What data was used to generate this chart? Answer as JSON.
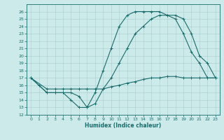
{
  "title": "",
  "xlabel": "Humidex (Indice chaleur)",
  "bg_color": "#cceaea",
  "line_color": "#1a6b6b",
  "grid_color": "#a8cccc",
  "xlim": [
    -0.5,
    23.5
  ],
  "ylim": [
    12,
    27
  ],
  "xticks": [
    0,
    1,
    2,
    3,
    4,
    5,
    6,
    7,
    8,
    9,
    10,
    11,
    12,
    13,
    14,
    15,
    16,
    17,
    18,
    19,
    20,
    21,
    22,
    23
  ],
  "yticks": [
    12,
    13,
    14,
    15,
    16,
    17,
    18,
    19,
    20,
    21,
    22,
    23,
    24,
    25,
    26
  ],
  "line1_x": [
    0,
    1,
    2,
    3,
    4,
    5,
    6,
    7,
    8,
    9,
    10,
    11,
    12,
    13,
    14,
    15,
    16,
    17,
    18,
    19,
    20,
    21,
    22,
    23
  ],
  "line1_y": [
    17,
    16,
    15,
    15,
    15,
    14,
    13,
    13,
    15,
    18,
    21,
    24,
    25.5,
    26,
    26,
    26,
    26,
    25.5,
    25,
    23,
    20.5,
    19,
    17,
    17
  ],
  "line2_x": [
    0,
    2,
    3,
    4,
    5,
    6,
    7,
    8,
    9,
    10,
    11,
    12,
    13,
    14,
    15,
    16,
    17,
    18,
    19,
    20,
    21,
    22,
    23
  ],
  "line2_y": [
    17,
    15,
    15,
    15,
    15,
    14.5,
    13,
    13.5,
    15.5,
    17,
    19,
    21,
    23,
    24,
    25,
    25.5,
    25.5,
    25.5,
    25,
    23,
    20,
    19,
    17
  ],
  "line3_x": [
    0,
    2,
    3,
    4,
    5,
    6,
    7,
    8,
    9,
    10,
    11,
    12,
    13,
    14,
    15,
    16,
    17,
    18,
    19,
    20,
    21,
    22,
    23
  ],
  "line3_y": [
    17,
    15.5,
    15.5,
    15.5,
    15.5,
    15.5,
    15.5,
    15.5,
    15.5,
    15.8,
    16,
    16.3,
    16.5,
    16.8,
    17,
    17,
    17.2,
    17.2,
    17,
    17,
    17,
    17,
    17
  ],
  "xlabel_fontsize": 5.5,
  "tick_fontsize": 4.5,
  "linewidth": 0.8,
  "markersize": 2.5,
  "markeredgewidth": 0.7
}
